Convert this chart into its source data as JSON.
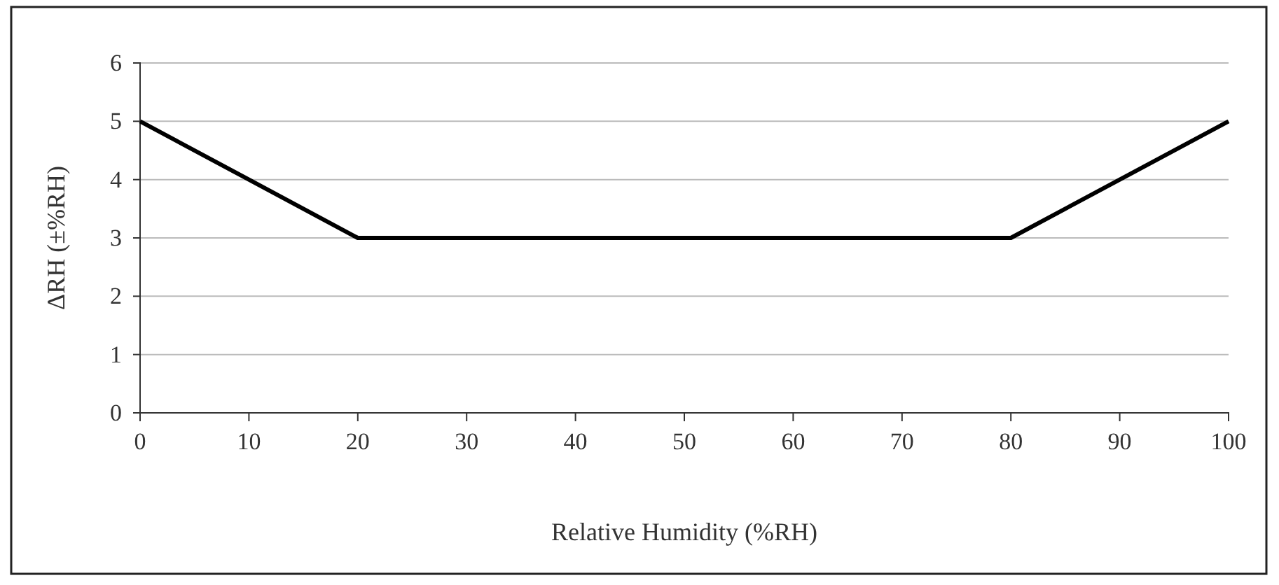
{
  "chart_data": {
    "type": "line",
    "xlabel": "Relative Humidity (%RH)",
    "ylabel": "ΔRH (±%RH)",
    "x": [
      0,
      20,
      80,
      100
    ],
    "series": [
      {
        "color": "#000000",
        "values": [
          5,
          3,
          3,
          5
        ]
      }
    ],
    "xlim": [
      0,
      100
    ],
    "xticks": [
      0,
      10,
      20,
      30,
      40,
      50,
      60,
      70,
      80,
      90,
      100
    ],
    "ylim": [
      0,
      6
    ],
    "yticks": [
      0,
      1,
      2,
      3,
      4,
      5,
      6
    ],
    "grid": "y",
    "marker": "none",
    "line_style": "solid"
  }
}
